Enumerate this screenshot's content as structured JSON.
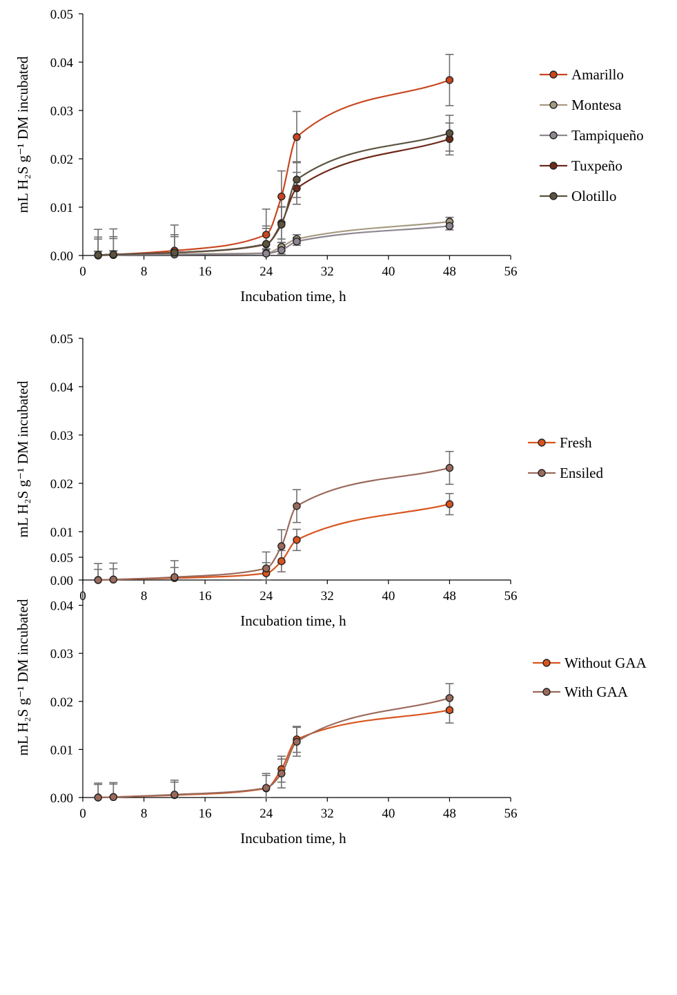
{
  "chart_data": [
    {
      "type": "line",
      "xlabel": "Incubation time, h",
      "ylabel": "mL H₂S g⁻¹ DM incubated",
      "xlim": [
        0,
        56
      ],
      "ylim": [
        0,
        0.05
      ],
      "xticks": [
        "0",
        "8",
        "16",
        "24",
        "32",
        "40",
        "48",
        "56"
      ],
      "yticks": [
        "0.00",
        "0.01",
        "0.02",
        "0.03",
        "0.04",
        "0.05"
      ],
      "x": [
        2,
        4,
        12,
        24,
        26,
        28,
        48
      ],
      "series": [
        {
          "name": "Amarillo",
          "color": "#c8461f",
          "values": [
            0.0001,
            0.0002,
            0.001,
            0.0043,
            0.0122,
            0.0245,
            0.0363
          ],
          "err": [
            0.0053,
            0.0053,
            0.0053,
            0.0053,
            0.0053,
            0.0053,
            0.0053
          ]
        },
        {
          "name": "Montesa",
          "color": "#a69a80",
          "values": [
            0.0,
            0.0001,
            0.0003,
            0.0005,
            0.0018,
            0.0034,
            0.007
          ],
          "err": [
            0.0009,
            0.0009,
            0.0009,
            0.0009,
            0.0009,
            0.0009,
            0.0009
          ]
        },
        {
          "name": "Tampiqueño",
          "color": "#8e8690",
          "values": [
            0.0,
            0.0001,
            0.0002,
            0.0004,
            0.0011,
            0.0029,
            0.0061
          ],
          "err": [
            0.0008,
            0.0008,
            0.0008,
            0.0008,
            0.0008,
            0.0008,
            0.0008
          ]
        },
        {
          "name": "Tuxpeño",
          "color": "#6e2a1a",
          "values": [
            0.0001,
            0.0002,
            0.0006,
            0.0023,
            0.0067,
            0.0139,
            0.0241
          ],
          "err": [
            0.0033,
            0.0033,
            0.0033,
            0.0033,
            0.0033,
            0.0033,
            0.0033
          ]
        },
        {
          "name": "Olotillo",
          "color": "#5c5340",
          "values": [
            0.0001,
            0.0002,
            0.0006,
            0.0024,
            0.0064,
            0.0157,
            0.0253
          ],
          "err": [
            0.0037,
            0.0037,
            0.0037,
            0.0037,
            0.0037,
            0.0037,
            0.0037
          ]
        }
      ]
    },
    {
      "type": "line",
      "xlabel": "Incubation time, h",
      "ylabel": "mL H₂S g⁻¹ DM incubated",
      "xlim": [
        0,
        56
      ],
      "ylim": [
        0,
        0.05
      ],
      "xticks": [
        "0",
        "8",
        "16",
        "24",
        "32",
        "40",
        "48",
        "56"
      ],
      "yticks": [
        "0.00",
        "0.01",
        "0.02",
        "0.03",
        "0.04",
        "0.05"
      ],
      "x": [
        2,
        4,
        12,
        24,
        26,
        28,
        48
      ],
      "series": [
        {
          "name": "Fresh",
          "color": "#d9541f",
          "values": [
            0.0,
            0.0001,
            0.0004,
            0.0014,
            0.0039,
            0.0083,
            0.0157
          ],
          "err": [
            0.0022,
            0.0022,
            0.0022,
            0.0022,
            0.0022,
            0.0022,
            0.0022
          ]
        },
        {
          "name": "Ensiled",
          "color": "#9a6a5c",
          "values": [
            0.0,
            0.0001,
            0.0006,
            0.0024,
            0.007,
            0.0153,
            0.0232
          ],
          "err": [
            0.0034,
            0.0034,
            0.0034,
            0.0034,
            0.0034,
            0.0034,
            0.0034
          ]
        }
      ]
    },
    {
      "type": "line",
      "xlabel": "Incubation time, h",
      "ylabel": "mL H₂S g⁻¹ DM incubated",
      "xlim": [
        0,
        56
      ],
      "ylim": [
        0,
        0.05
      ],
      "xticks": [
        "0",
        "8",
        "16",
        "24",
        "32",
        "40",
        "48",
        "56"
      ],
      "yticks": [
        "0.00",
        "0.01",
        "0.02",
        "0.03",
        "0.04",
        "0.05"
      ],
      "x": [
        2,
        4,
        12,
        24,
        26,
        28,
        48
      ],
      "series": [
        {
          "name": "Without GAA",
          "color": "#d9541f",
          "values": [
            0.0,
            0.0001,
            0.0005,
            0.0019,
            0.0059,
            0.0121,
            0.0182
          ],
          "err": [
            0.0027,
            0.0027,
            0.0027,
            0.0027,
            0.0027,
            0.0027,
            0.0027
          ]
        },
        {
          "name": "With GAA",
          "color": "#9a6a5c",
          "values": [
            0.0,
            0.0001,
            0.0006,
            0.002,
            0.005,
            0.0116,
            0.0207
          ],
          "err": [
            0.003,
            0.003,
            0.003,
            0.003,
            0.003,
            0.003,
            0.003
          ]
        }
      ]
    }
  ]
}
